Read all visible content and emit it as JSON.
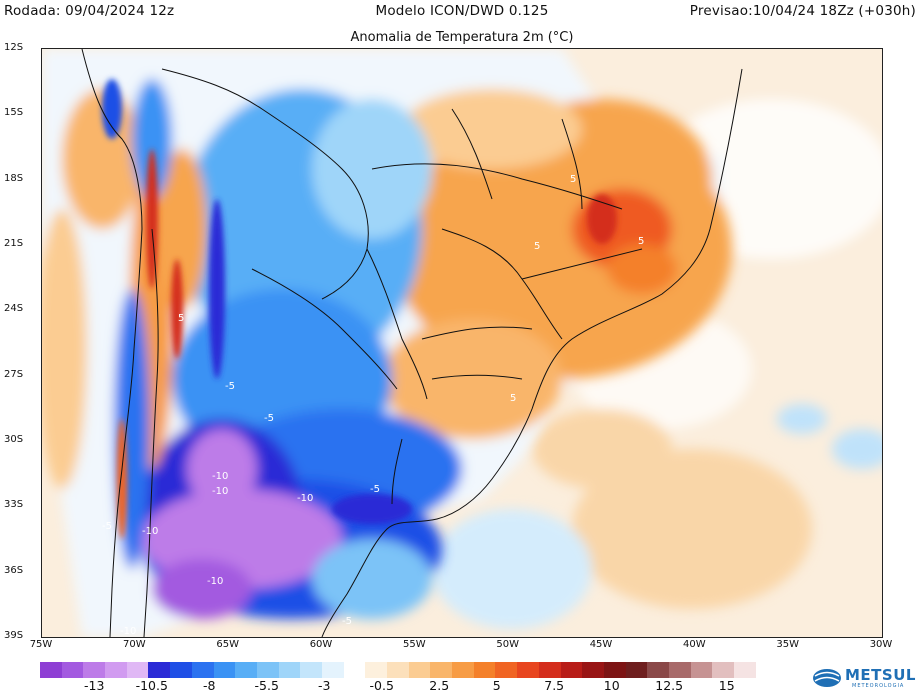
{
  "header": {
    "left": "Rodada: 09/04/2024 12z",
    "center": "Modelo ICON/DWD 0.125",
    "right": "Previsao:10/04/24 18Zz (+030h)"
  },
  "map": {
    "title": "Anomalia de Temperatura 2m (°C)",
    "lat_labels": [
      "12S",
      "15S",
      "18S",
      "21S",
      "24S",
      "27S",
      "30S",
      "33S",
      "36S",
      "39S"
    ],
    "lon_labels": [
      "75W",
      "70W",
      "65W",
      "60W",
      "55W",
      "50W",
      "45W",
      "40W",
      "35W",
      "30W"
    ],
    "contour_labels": [
      "-10",
      "-10",
      "-10",
      "-10",
      "-10",
      "-10",
      "-5",
      "-5",
      "-5",
      "-5",
      "-5",
      "5",
      "5",
      "5",
      "5",
      "5"
    ]
  },
  "colorbar": {
    "colors": [
      "#8e3fd4",
      "#a35ae0",
      "#bd7be8",
      "#d19bf0",
      "#e0b8f5",
      "#2a2ad6",
      "#1f4fe6",
      "#2b72f0",
      "#3a92f4",
      "#58aef6",
      "#7cc3f7",
      "#9fd5f9",
      "#c3e5fb",
      "#e4f3fd",
      "#ffffff",
      "#fdf0dd",
      "#fce0bb",
      "#fbcc92",
      "#f9b56a",
      "#f79c45",
      "#f4802a",
      "#f06423",
      "#e8451f",
      "#d42d1c",
      "#b81d18",
      "#991515",
      "#7d1414",
      "#6e1e1e",
      "#8a4848",
      "#a86a6a",
      "#c69393",
      "#e2bfbf",
      "#f5e3e3"
    ],
    "labels": [
      "-13",
      "-10.5",
      "-8",
      "-5.5",
      "-3",
      "-0.5",
      "2.5",
      "5",
      "7.5",
      "10",
      "12.5",
      "15"
    ]
  },
  "logo": {
    "text": "METSUL",
    "subtext": "METEOROLOGIA",
    "icon": "globe-logo-icon"
  }
}
